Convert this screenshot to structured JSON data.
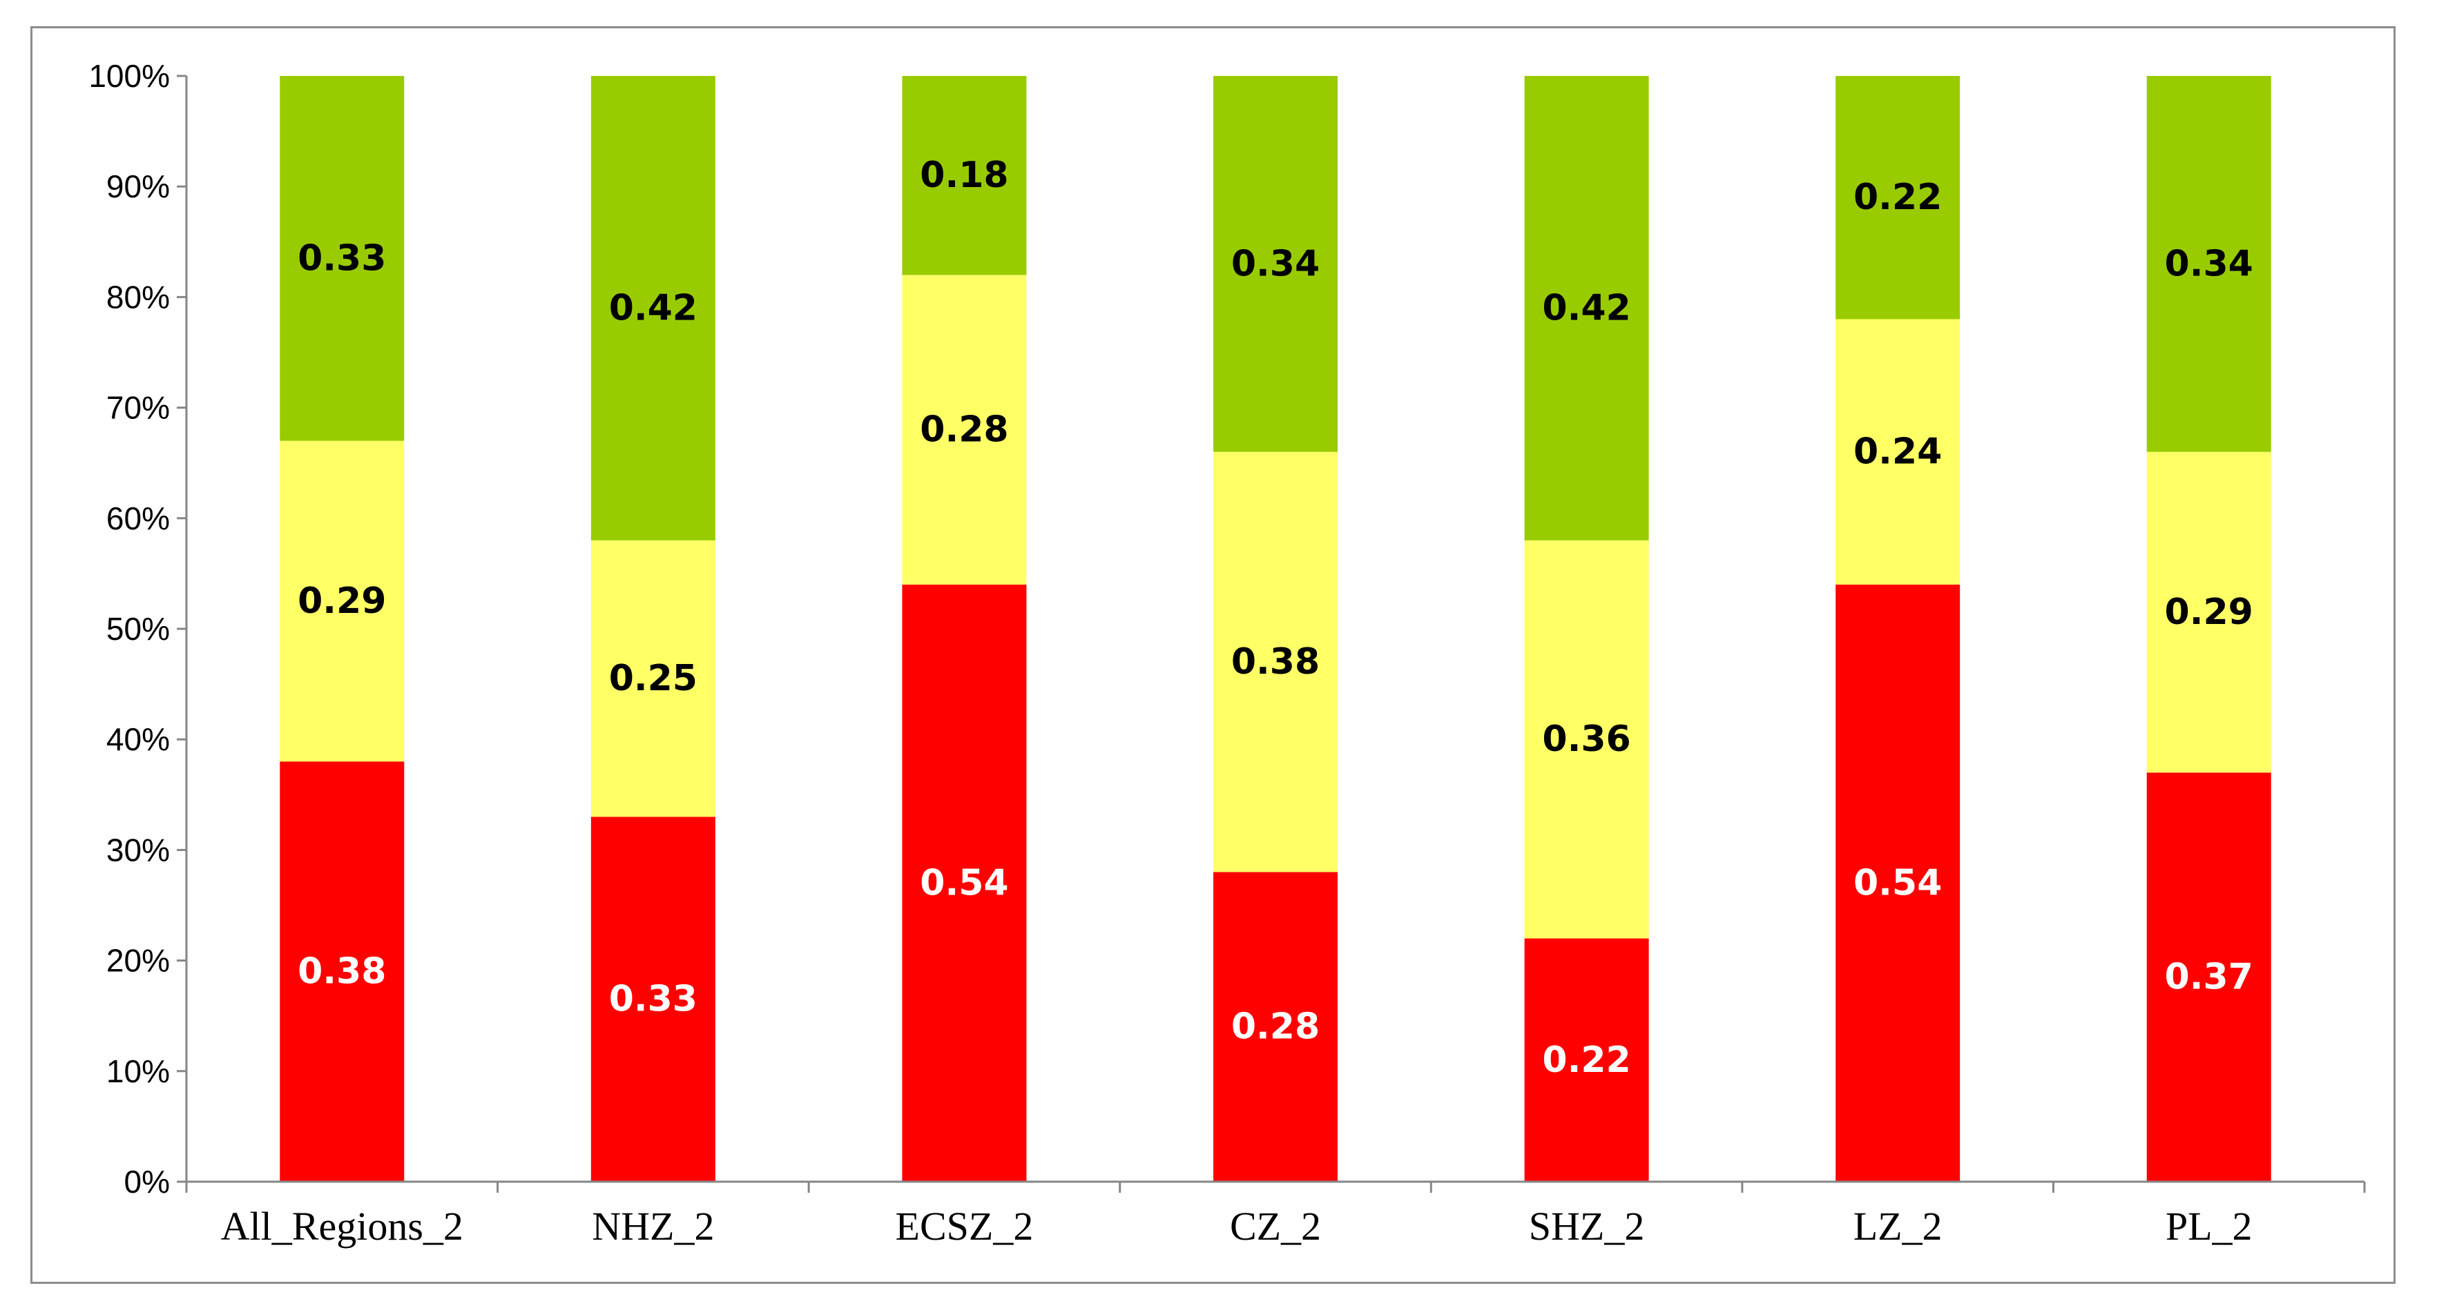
{
  "chart_data": {
    "type": "bar",
    "stacked": true,
    "percent_stacked": true,
    "categories": [
      "All_Regions_2",
      "NHZ_2",
      "ECSZ_2",
      "CZ_2",
      "SHZ_2",
      "LZ_2",
      "PL_2"
    ],
    "series": [
      {
        "values": [
          0.38,
          0.33,
          0.54,
          0.28,
          0.22,
          0.54,
          0.37
        ],
        "color": "#ff0000",
        "label_color": "#ffffff"
      },
      {
        "values": [
          0.29,
          0.25,
          0.28,
          0.38,
          0.36,
          0.24,
          0.29
        ],
        "color": "#ffff66",
        "label_color": "#000000"
      },
      {
        "values": [
          0.33,
          0.42,
          0.18,
          0.34,
          0.42,
          0.22,
          0.34
        ],
        "color": "#99cc00",
        "label_color": "#000000"
      }
    ],
    "data_labels": [
      [
        "0.38",
        "0.33",
        "0.54",
        "0.28",
        "0.22",
        "0.54",
        "0.37"
      ],
      [
        "0.29",
        "0.25",
        "0.28",
        "0.38",
        "0.36",
        "0.24",
        "0.29"
      ],
      [
        "0.33",
        "0.42",
        "0.18",
        "0.34",
        "0.42",
        "0.22",
        "0.34"
      ]
    ],
    "y_ticks": [
      "0%",
      "10%",
      "20%",
      "30%",
      "40%",
      "50%",
      "60%",
      "70%",
      "80%",
      "90%",
      "100%"
    ],
    "ylim": [
      0,
      1
    ],
    "grid": false,
    "legend": "none",
    "title": "",
    "xlabel": "",
    "ylabel": ""
  }
}
